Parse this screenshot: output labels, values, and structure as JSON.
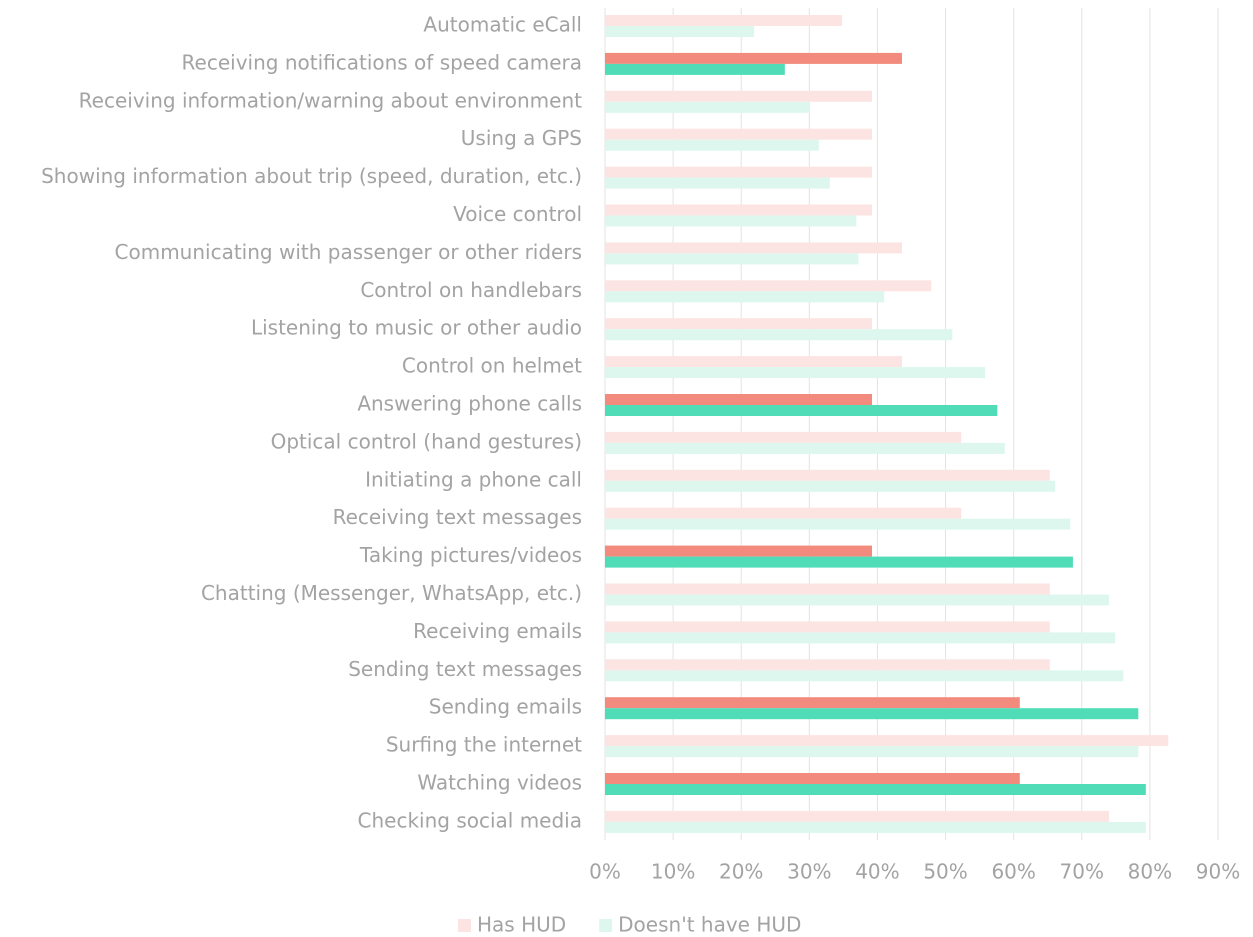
{
  "chart_data": {
    "type": "bar",
    "orientation": "horizontal",
    "categories": [
      "Automatic eCall",
      "Receiving notifications of speed camera",
      "Receiving information/warning about environment ",
      "Using a GPS",
      "Showing information about trip (speed, duration, etc.)",
      "Voice control",
      "Communicating with passenger or other riders",
      "Control on handlebars",
      "Listening to music or other audio",
      "Control on helmet",
      "Answering phone calls",
      "Optical control (hand gestures)",
      "Initiating a phone call",
      "Receiving text messages",
      "Taking pictures/videos",
      "Chatting (Messenger, WhatsApp, etc.)",
      "Receiving emails",
      "Sending text messages",
      "Sending emails",
      "Surfing the internet",
      "Watching videos",
      "Checking social media"
    ],
    "series": [
      {
        "name": "Has HUD",
        "color": "#fce4e3",
        "colors": [
          "#fce4e3",
          "#f28b7d",
          "#fce4e3",
          "#fce4e3",
          "#fce4e3",
          "#fce4e3",
          "#fce4e3",
          "#fce4e3",
          "#fce4e3",
          "#fce4e3",
          "#f28b7d",
          "#fce4e3",
          "#fce4e3",
          "#fce4e3",
          "#f28b7d",
          "#fce4e3",
          "#fce4e3",
          "#fce4e3",
          "#f28b7d",
          "#fce4e3",
          "#f28b7d",
          "#fce4e3"
        ],
        "values": [
          34.8,
          43.6,
          39.2,
          39.2,
          39.2,
          39.2,
          43.6,
          47.9,
          39.2,
          43.6,
          39.2,
          52.3,
          65.3,
          52.3,
          39.2,
          65.3,
          65.3,
          65.3,
          60.9,
          82.7,
          60.9,
          74.0
        ]
      },
      {
        "name": "Doesn't have HUD",
        "color": "#ddf7ef",
        "colors": [
          "#ddf7ef",
          "#4fdcb6",
          "#ddf7ef",
          "#ddf7ef",
          "#ddf7ef",
          "#ddf7ef",
          "#ddf7ef",
          "#ddf7ef",
          "#ddf7ef",
          "#ddf7ef",
          "#4fdcb6",
          "#ddf7ef",
          "#ddf7ef",
          "#ddf7ef",
          "#4fdcb6",
          "#ddf7ef",
          "#ddf7ef",
          "#ddf7ef",
          "#4fdcb6",
          "#ddf7ef",
          "#4fdcb6",
          "#ddf7ef"
        ],
        "values": [
          21.9,
          26.4,
          30.1,
          31.4,
          33.0,
          36.9,
          37.2,
          41.0,
          51.0,
          55.8,
          57.6,
          58.7,
          66.1,
          68.3,
          68.7,
          74.0,
          74.9,
          76.1,
          78.3,
          78.3,
          79.4,
          79.4
        ]
      }
    ],
    "xlim": [
      0,
      90
    ],
    "xticks": [
      {
        "value": 0,
        "label": "0%"
      },
      {
        "value": 10,
        "label": "10%"
      },
      {
        "value": 20,
        "label": "20%"
      },
      {
        "value": 30,
        "label": "30%"
      },
      {
        "value": 40,
        "label": "40%"
      },
      {
        "value": 50,
        "label": "50%"
      },
      {
        "value": 60,
        "label": "60%"
      },
      {
        "value": 70,
        "label": "70%"
      },
      {
        "value": 80,
        "label": "80%"
      },
      {
        "value": 90,
        "label": "90%"
      }
    ],
    "grid": true,
    "legend": "bottom"
  }
}
